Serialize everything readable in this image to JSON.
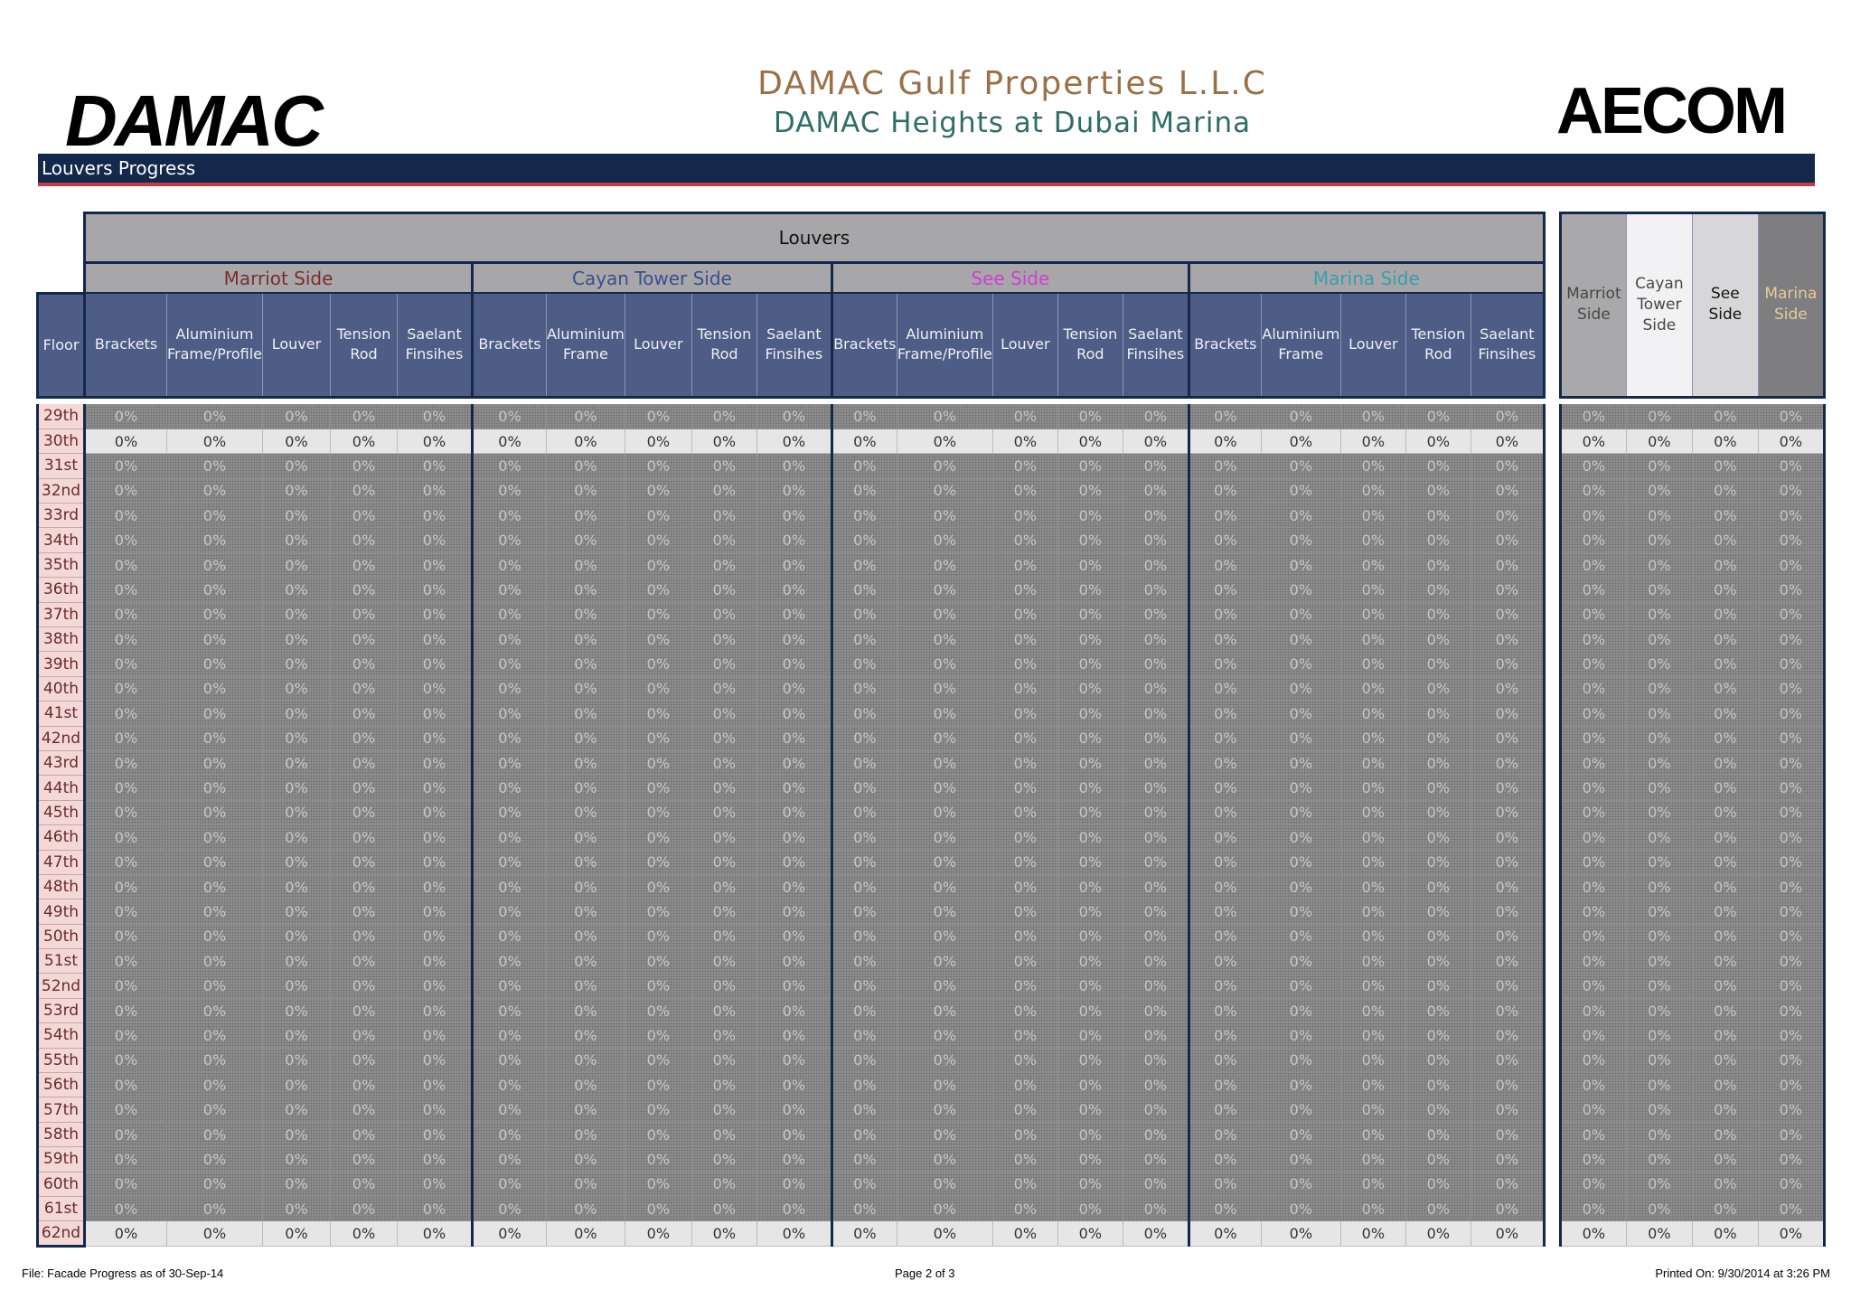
{
  "header": {
    "left_logo": "DAMAC",
    "right_logo": "AECOM",
    "title": "DAMAC Gulf Properties L.L.C",
    "subtitle": "DAMAC Heights at Dubai Marina",
    "section": "Louvers Progress"
  },
  "table": {
    "super_header": "Louvers",
    "floor_label": "Floor",
    "groups": [
      {
        "name": "Marriot Side",
        "color": "#7a2e2e",
        "columns": [
          "Brackets",
          "Aluminium Frame/Profile",
          "Louver",
          "Tension Rod",
          "Saelant Finsihes"
        ]
      },
      {
        "name": "Cayan Tower Side",
        "color": "#3b4e8c",
        "columns": [
          "Brackets",
          "Aluminium Frame",
          "Louver",
          "Tension Rod",
          "Saelant Finsihes"
        ]
      },
      {
        "name": "See Side",
        "color": "#d23ed0",
        "columns": [
          "Brackets",
          "Aluminium Frame/Profile",
          "Louver",
          "Tension Rod",
          "Saelant Finsihes"
        ]
      },
      {
        "name": "Marina Side",
        "color": "#3a9eaa",
        "columns": [
          "Brackets",
          "Aluminium Frame",
          "Louver",
          "Tension Rod",
          "Saelant Finsihes"
        ]
      }
    ],
    "summary_columns": [
      {
        "label": "Marriot Side",
        "bg": "#a9a9ab",
        "color": "#474747"
      },
      {
        "label": "Cayan Tower Side",
        "bg": "#f2f2f4",
        "color": "#474747"
      },
      {
        "label": "See Side",
        "bg": "#d7d7d9",
        "color": "#111111"
      },
      {
        "label": "Marina Side",
        "bg": "#7e7e80",
        "color": "#e8c99a"
      }
    ],
    "value": "0%",
    "floors": [
      "29th",
      "30th",
      "31st",
      "32nd",
      "33rd",
      "34th",
      "35th",
      "36th",
      "37th",
      "38th",
      "39th",
      "40th",
      "41st",
      "42nd",
      "43rd",
      "44th",
      "45th",
      "46th",
      "47th",
      "48th",
      "49th",
      "50th",
      "51st",
      "52nd",
      "53rd",
      "54th",
      "55th",
      "56th",
      "57th",
      "58th",
      "59th",
      "60th",
      "61st",
      "62nd"
    ],
    "highlight_floors": [
      "30th",
      "62nd"
    ]
  },
  "footer": {
    "file": "File: Facade Progress as of 30-Sep-14",
    "page": "Page 2 of 3",
    "printed": "Printed On: 9/30/2014 at 3:26 PM"
  }
}
